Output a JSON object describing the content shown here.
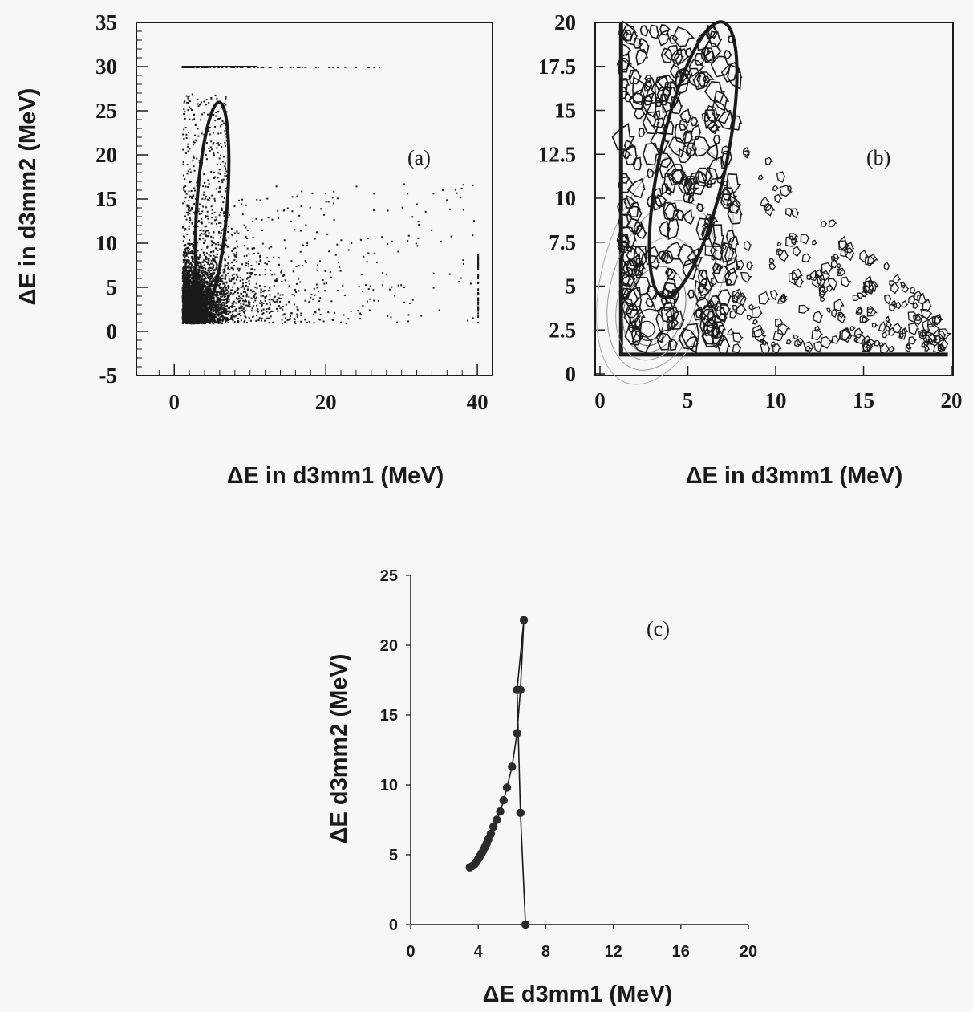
{
  "chart_data": [
    {
      "panel": "a",
      "type": "scatter",
      "tag": "(a)",
      "xlabel": "ΔE in d3mm1 (MeV)",
      "ylabel": "ΔE in d3mm2 (MeV)",
      "xlim": [
        -5,
        42
      ],
      "ylim": [
        -5,
        35
      ],
      "xticks": [
        "0",
        "20",
        "40"
      ],
      "xtick_values": [
        0,
        20,
        40
      ],
      "yticks": [
        "35",
        "30",
        "25",
        "20",
        "15",
        "10",
        "5",
        "0",
        "-5"
      ],
      "ytick_values": [
        35,
        30,
        25,
        20,
        15,
        10,
        5,
        0,
        -5
      ],
      "point_count_description": "dense event scatter concentrated at low ΔE1, high-ΔE2 saturation band at 30 MeV",
      "selection_ellipse": {
        "center": [
          5,
          14.5
        ],
        "half_width": 2.0,
        "half_height": 11.5,
        "tilt_deg": 4
      }
    },
    {
      "panel": "b",
      "type": "contour",
      "tag": "(b)",
      "xlabel": "ΔE in d3mm1 (MeV)",
      "ylabel": "",
      "xlim": [
        0,
        20
      ],
      "ylim": [
        0,
        20
      ],
      "xticks": [
        "0",
        "5",
        "10",
        "15",
        "20"
      ],
      "xtick_values": [
        0,
        5,
        10,
        15,
        20
      ],
      "yticks": [
        "20",
        "17.5",
        "15",
        "12.5",
        "10",
        "7.5",
        "5",
        "2.5",
        "0"
      ],
      "ytick_values": [
        20,
        17.5,
        15,
        12.5,
        10,
        7.5,
        5,
        2.5,
        0
      ],
      "peak": [
        2.5,
        2.3
      ],
      "selection_ellipse": {
        "center": [
          5.3,
          12.2
        ],
        "half_width": 1.9,
        "half_height": 8.0,
        "tilt_deg": 12
      }
    },
    {
      "panel": "c",
      "type": "line",
      "tag": "(c)",
      "xlabel": "ΔE d3mm1 (MeV)",
      "ylabel": "ΔE d3mm2 (MeV)",
      "xlim": [
        0,
        20
      ],
      "ylim": [
        0,
        25
      ],
      "xticks": [
        "0",
        "4",
        "8",
        "12",
        "16",
        "20"
      ],
      "xtick_values": [
        0,
        4,
        8,
        12,
        16,
        20
      ],
      "yticks": [
        "0",
        "5",
        "10",
        "15",
        "20",
        "25"
      ],
      "ytick_values": [
        0,
        5,
        10,
        15,
        20,
        25
      ],
      "series": [
        {
          "x": [
            3.5,
            3.65,
            3.8,
            3.9,
            4.0,
            4.1,
            4.2,
            4.3,
            4.4,
            4.5,
            4.6,
            4.75,
            4.9,
            5.1,
            5.3,
            5.5,
            5.7,
            6.0,
            6.3,
            6.5,
            6.7
          ],
          "y": [
            4.1,
            4.2,
            4.35,
            4.5,
            4.7,
            4.9,
            5.1,
            5.3,
            5.55,
            5.8,
            6.1,
            6.5,
            7.0,
            7.5,
            8.1,
            8.9,
            9.8,
            11.3,
            13.7,
            16.8,
            21.8
          ],
          "note": "upper branch"
        }
      ],
      "descending_branch": {
        "x": [
          6.0,
          6.3,
          6.5,
          6.8
        ],
        "y": [
          21.8,
          16.8,
          8.0,
          0.0
        ]
      }
    }
  ],
  "colors": {
    "ink": "#1a1a1a",
    "background": "#f7f7f5",
    "contour_light": "#9a9a9a"
  }
}
